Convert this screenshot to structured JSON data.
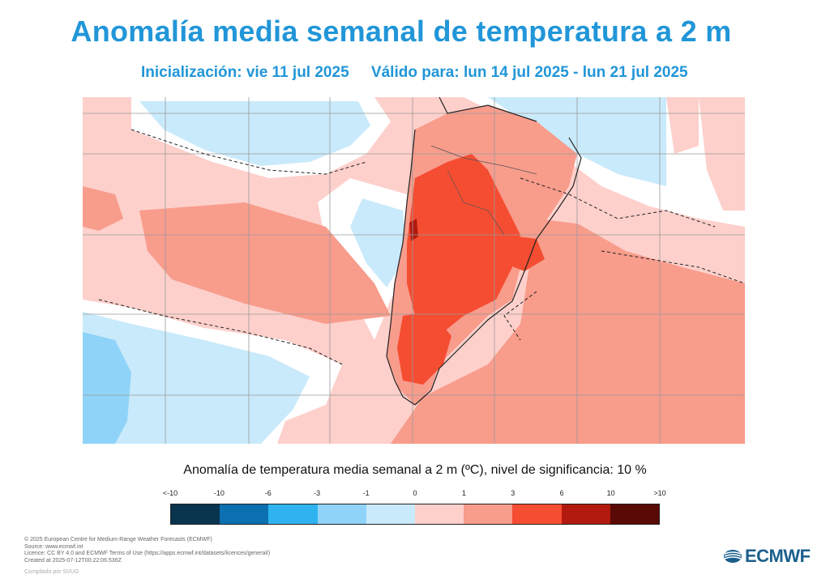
{
  "header": {
    "title": "Anomalía media semanal de temperatura a 2 m",
    "init": "Inicialización: vie 11 jul 2025",
    "valid": "Válido para: lun 14 jul 2025 - lun 21 jul 2025"
  },
  "legend": {
    "title": "Anomalía de temperatura media semanal a 2 m (ºC), nivel de significancia: 10 %",
    "ticks": [
      "<-10",
      "-10",
      "-6",
      "-3",
      "-1",
      "0",
      "1",
      "3",
      "6",
      "10",
      ">10"
    ],
    "colors": [
      "#08344e",
      "#0b6fb0",
      "#2fb3f0",
      "#8fd3f8",
      "#c9eafb",
      "#fdd0cb",
      "#f89c8c",
      "#f54d32",
      "#b21a0f",
      "#5a0a06"
    ]
  },
  "footer": {
    "lines": [
      "© 2025 European Centre for Medium-Range Weather Forecasts (ECMWF)",
      "Source: www.ecmwf.int",
      "Licence: CC BY 4.0 and ECMWF Terms of Use (https://apps.ecmwf.int/datasets/licences/general/)",
      "Created at 2025-07-12T00:22:06.536Z"
    ],
    "credit": "Compilado por SVUG"
  },
  "logo": {
    "text": "ECMWF",
    "color": "#1a5f8c"
  },
  "map": {
    "ocean_base": "#fdd0cb",
    "land_base": "#fdd0cb",
    "positive_strong": "#f54d32",
    "positive": "#f89c8c",
    "neutral": "#ffffff",
    "negative": "#c9eafb",
    "negative_strong": "#8fd3f8"
  }
}
